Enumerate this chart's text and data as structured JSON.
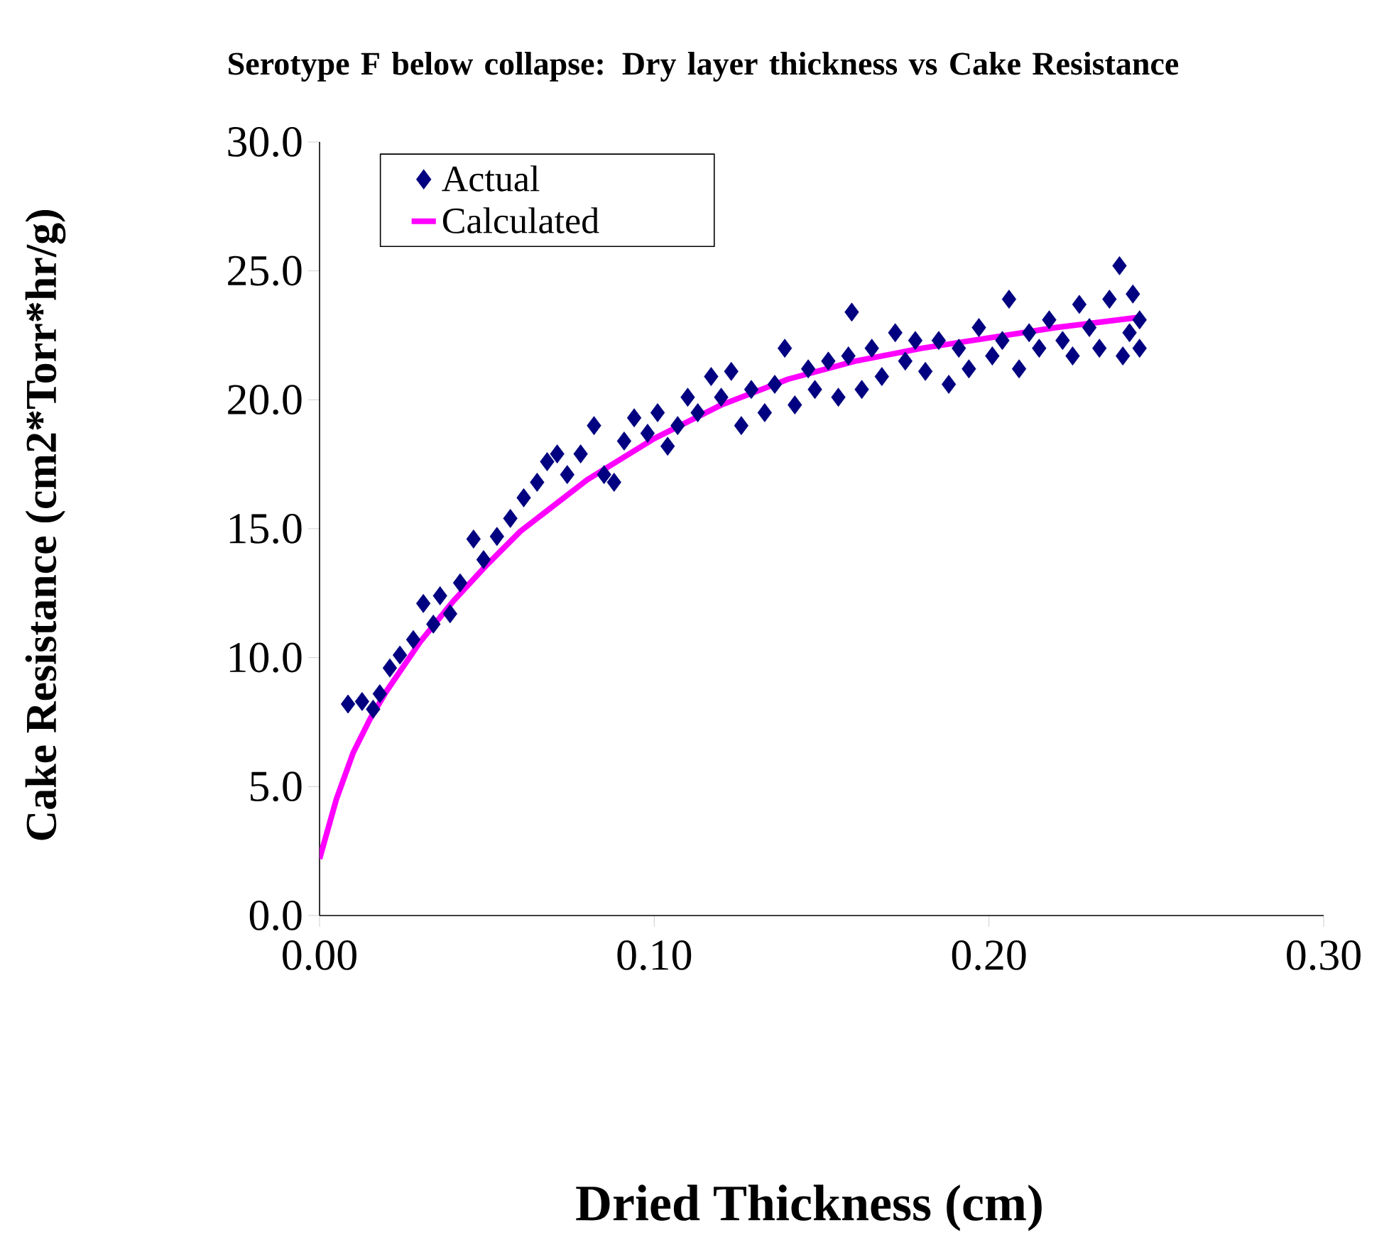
{
  "chart_data": {
    "type": "scatter",
    "title": "Serotype F below collapse: Dry layer thickness vs Cake Resistance",
    "xlabel": "Dried Thickness (cm)",
    "ylabel": "Cake Resistance (cm2*Torr*hr/g)",
    "xlim": [
      0,
      0.3
    ],
    "ylim": [
      0,
      30
    ],
    "xticks": [
      {
        "value": 0,
        "label": "0.00"
      },
      {
        "value": 0.1,
        "label": "0.10"
      },
      {
        "value": 0.2,
        "label": "0.20"
      },
      {
        "value": 0.3,
        "label": "0.30"
      }
    ],
    "yticks": [
      {
        "value": 0,
        "label": "0.0"
      },
      {
        "value": 5,
        "label": "5.0"
      },
      {
        "value": 10,
        "label": "10.0"
      },
      {
        "value": 15,
        "label": "15.0"
      },
      {
        "value": 20,
        "label": "20.0"
      },
      {
        "value": 25,
        "label": "25.0"
      },
      {
        "value": 30,
        "label": "30.0"
      }
    ],
    "legend": "top left",
    "grid": false,
    "series": [
      {
        "name": "Actual",
        "marker": "diamond",
        "color": "#000080",
        "x": [
          0.0085,
          0.0127,
          0.016,
          0.018,
          0.021,
          0.024,
          0.028,
          0.031,
          0.034,
          0.036,
          0.039,
          0.042,
          0.046,
          0.049,
          0.053,
          0.057,
          0.061,
          0.065,
          0.068,
          0.071,
          0.074,
          0.078,
          0.082,
          0.085,
          0.088,
          0.091,
          0.094,
          0.098,
          0.101,
          0.104,
          0.107,
          0.11,
          0.113,
          0.117,
          0.12,
          0.123,
          0.126,
          0.129,
          0.133,
          0.136,
          0.139,
          0.142,
          0.146,
          0.148,
          0.152,
          0.155,
          0.158,
          0.159,
          0.162,
          0.165,
          0.168,
          0.172,
          0.175,
          0.178,
          0.181,
          0.185,
          0.188,
          0.191,
          0.194,
          0.197,
          0.201,
          0.204,
          0.206,
          0.209,
          0.212,
          0.215,
          0.218,
          0.222,
          0.225,
          0.227,
          0.23,
          0.233,
          0.236,
          0.239,
          0.24,
          0.242,
          0.243,
          0.245,
          0.245
        ],
        "values": [
          8.2,
          8.3,
          8.0,
          8.6,
          9.6,
          10.1,
          10.7,
          12.1,
          11.3,
          12.4,
          11.7,
          12.9,
          14.6,
          13.8,
          14.7,
          15.4,
          16.2,
          16.8,
          17.6,
          17.9,
          17.1,
          17.9,
          19.0,
          17.1,
          16.8,
          18.4,
          19.3,
          18.7,
          19.5,
          18.2,
          19.0,
          20.1,
          19.5,
          20.9,
          20.1,
          21.1,
          19.0,
          20.4,
          19.5,
          20.6,
          22.0,
          19.8,
          21.2,
          20.4,
          21.5,
          20.1,
          21.7,
          23.4,
          20.4,
          22.0,
          20.9,
          22.6,
          21.5,
          22.3,
          21.1,
          22.3,
          20.6,
          22.0,
          21.2,
          22.8,
          21.7,
          22.3,
          23.9,
          21.2,
          22.6,
          22.0,
          23.1,
          22.3,
          21.7,
          23.7,
          22.8,
          22.0,
          23.9,
          25.2,
          21.7,
          22.6,
          24.1,
          22.0,
          23.1
        ]
      },
      {
        "name": "Calculated",
        "type": "line",
        "marker": "none",
        "line_style": "solid",
        "color": "#ff00ff",
        "x": [
          0,
          0.005,
          0.01,
          0.015,
          0.02,
          0.03,
          0.04,
          0.05,
          0.06,
          0.08,
          0.1,
          0.12,
          0.14,
          0.16,
          0.18,
          0.2,
          0.22,
          0.245
        ],
        "values": [
          2.2,
          4.5,
          6.3,
          7.6,
          8.7,
          10.6,
          12.2,
          13.6,
          14.9,
          16.9,
          18.5,
          19.8,
          20.8,
          21.5,
          22.0,
          22.4,
          22.8,
          23.2
        ]
      }
    ]
  }
}
